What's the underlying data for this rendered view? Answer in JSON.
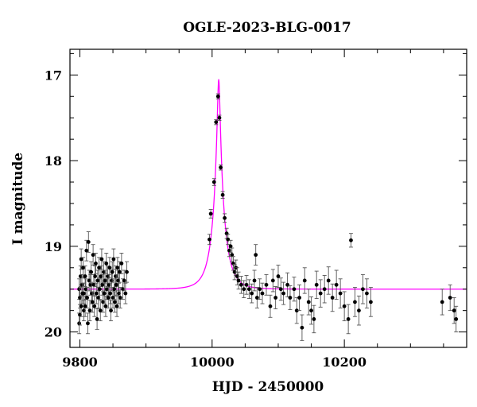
{
  "chart_data": {
    "type": "scatter",
    "title": "OGLE-2023-BLG-0017",
    "xlabel": "HJD - 2450000",
    "ylabel": "I magnitude",
    "xlim": [
      9785,
      10385
    ],
    "ylim": [
      20.18,
      16.7
    ],
    "y_inverted": true,
    "x_ticks": [
      9800,
      10000,
      10200
    ],
    "x_tick_labels": [
      "9800",
      "10000",
      "10200"
    ],
    "y_ticks": [
      17,
      18,
      19,
      20
    ],
    "y_tick_labels": [
      "17",
      "18",
      "19",
      "20"
    ],
    "grid": false,
    "colors": {
      "data": "#000000",
      "errorbar": "#555555",
      "model": "#ff00ff",
      "frame": "#000000"
    },
    "model": {
      "curve": "microlensing point-lens fit",
      "t0": 10010,
      "peak_mag": 17.05,
      "baseline_mag": 19.5
    },
    "series": [
      {
        "points": [
          [
            9799,
            19.9,
            0.12
          ],
          [
            9799,
            19.5,
            0.12
          ],
          [
            9800,
            19.6,
            0.12
          ],
          [
            9800,
            19.8,
            0.12
          ],
          [
            9801,
            19.35,
            0.12
          ],
          [
            9802,
            19.15,
            0.12
          ],
          [
            9802,
            19.7,
            0.12
          ],
          [
            9803,
            19.45,
            0.12
          ],
          [
            9804,
            19.55,
            0.12
          ],
          [
            9805,
            19.25,
            0.12
          ],
          [
            9806,
            19.75,
            0.12
          ],
          [
            9806,
            19.55,
            0.12
          ],
          [
            9808,
            19.35,
            0.12
          ],
          [
            9808,
            19.7,
            0.12
          ],
          [
            9809,
            19.5,
            0.12
          ],
          [
            9810,
            19.05,
            0.12
          ],
          [
            9811,
            19.6,
            0.12
          ],
          [
            9812,
            19.9,
            0.12
          ],
          [
            9813,
            18.95,
            0.12
          ],
          [
            9814,
            19.4,
            0.12
          ],
          [
            9815,
            19.75,
            0.12
          ],
          [
            9816,
            19.45,
            0.12
          ],
          [
            9817,
            19.3,
            0.12
          ],
          [
            9818,
            19.55,
            0.12
          ],
          [
            9819,
            19.65,
            0.12
          ],
          [
            9820,
            19.1,
            0.12
          ],
          [
            9821,
            19.45,
            0.12
          ],
          [
            9822,
            19.7,
            0.12
          ],
          [
            9823,
            19.35,
            0.12
          ],
          [
            9824,
            19.2,
            0.12
          ],
          [
            9825,
            19.55,
            0.12
          ],
          [
            9826,
            19.85,
            0.12
          ],
          [
            9827,
            19.4,
            0.12
          ],
          [
            9828,
            19.6,
            0.12
          ],
          [
            9829,
            19.25,
            0.12
          ],
          [
            9830,
            19.5,
            0.12
          ],
          [
            9831,
            19.75,
            0.12
          ],
          [
            9832,
            19.35,
            0.12
          ],
          [
            9833,
            19.15,
            0.12
          ],
          [
            9834,
            19.45,
            0.12
          ],
          [
            9835,
            19.65,
            0.12
          ],
          [
            9836,
            19.3,
            0.12
          ],
          [
            9837,
            19.55,
            0.12
          ],
          [
            9838,
            19.4,
            0.12
          ],
          [
            9839,
            19.7,
            0.12
          ],
          [
            9840,
            19.2,
            0.12
          ],
          [
            9841,
            19.5,
            0.12
          ],
          [
            9842,
            19.35,
            0.12
          ],
          [
            9843,
            19.6,
            0.12
          ],
          [
            9844,
            19.45,
            0.12
          ],
          [
            9845,
            19.25,
            0.12
          ],
          [
            9846,
            19.55,
            0.12
          ],
          [
            9847,
            19.75,
            0.12
          ],
          [
            9848,
            19.4,
            0.12
          ],
          [
            9849,
            19.3,
            0.12
          ],
          [
            9850,
            19.6,
            0.12
          ],
          [
            9851,
            19.15,
            0.12
          ],
          [
            9852,
            19.5,
            0.12
          ],
          [
            9853,
            19.65,
            0.12
          ],
          [
            9854,
            19.35,
            0.12
          ],
          [
            9855,
            19.45,
            0.12
          ],
          [
            9856,
            19.7,
            0.12
          ],
          [
            9857,
            19.25,
            0.12
          ],
          [
            9858,
            19.4,
            0.12
          ],
          [
            9859,
            19.55,
            0.12
          ],
          [
            9860,
            19.3,
            0.12
          ],
          [
            9861,
            19.6,
            0.12
          ],
          [
            9863,
            19.2,
            0.12
          ],
          [
            9865,
            19.5,
            0.12
          ],
          [
            9867,
            19.4,
            0.12
          ],
          [
            9869,
            19.55,
            0.12
          ],
          [
            9871,
            19.3,
            0.12
          ],
          [
            9996,
            18.92,
            0.06
          ],
          [
            9998,
            18.62,
            0.05
          ],
          [
            10003,
            18.25,
            0.04
          ],
          [
            10006,
            17.55,
            0.03
          ],
          [
            10009,
            17.25,
            0.03
          ],
          [
            10011,
            17.5,
            0.03
          ],
          [
            10013,
            18.08,
            0.03
          ],
          [
            10016,
            18.4,
            0.04
          ],
          [
            10019,
            18.67,
            0.05
          ],
          [
            10022,
            18.85,
            0.06
          ],
          [
            10024,
            18.92,
            0.06
          ],
          [
            10026,
            19.05,
            0.07
          ],
          [
            10028,
            19.0,
            0.07
          ],
          [
            10030,
            19.1,
            0.08
          ],
          [
            10032,
            19.2,
            0.08
          ],
          [
            10034,
            19.3,
            0.09
          ],
          [
            10036,
            19.25,
            0.09
          ],
          [
            10038,
            19.35,
            0.1
          ],
          [
            10040,
            19.4,
            0.1
          ],
          [
            10044,
            19.45,
            0.1
          ],
          [
            10048,
            19.5,
            0.1
          ],
          [
            10052,
            19.45,
            0.11
          ],
          [
            10056,
            19.5,
            0.11
          ],
          [
            10060,
            19.55,
            0.11
          ],
          [
            10064,
            19.4,
            0.12
          ],
          [
            10066,
            19.1,
            0.12
          ],
          [
            10068,
            19.6,
            0.12
          ],
          [
            10072,
            19.5,
            0.12
          ],
          [
            10076,
            19.55,
            0.12
          ],
          [
            10082,
            19.45,
            0.12
          ],
          [
            10088,
            19.7,
            0.13
          ],
          [
            10092,
            19.4,
            0.13
          ],
          [
            10096,
            19.6,
            0.13
          ],
          [
            10100,
            19.35,
            0.13
          ],
          [
            10104,
            19.5,
            0.13
          ],
          [
            10108,
            19.55,
            0.13
          ],
          [
            10114,
            19.45,
            0.14
          ],
          [
            10118,
            19.6,
            0.14
          ],
          [
            10124,
            19.5,
            0.14
          ],
          [
            10128,
            19.75,
            0.15
          ],
          [
            10132,
            19.6,
            0.15
          ],
          [
            10136,
            19.95,
            0.15
          ],
          [
            10140,
            19.4,
            0.15
          ],
          [
            10146,
            19.65,
            0.15
          ],
          [
            10150,
            19.75,
            0.16
          ],
          [
            10154,
            19.85,
            0.16
          ],
          [
            10158,
            19.45,
            0.16
          ],
          [
            10164,
            19.55,
            0.16
          ],
          [
            10170,
            19.5,
            0.16
          ],
          [
            10176,
            19.4,
            0.16
          ],
          [
            10182,
            19.6,
            0.16
          ],
          [
            10188,
            19.45,
            0.17
          ],
          [
            10194,
            19.55,
            0.17
          ],
          [
            10200,
            19.7,
            0.17
          ],
          [
            10206,
            19.85,
            0.17
          ],
          [
            10210,
            18.93,
            0.08
          ],
          [
            10216,
            19.65,
            0.17
          ],
          [
            10222,
            19.75,
            0.17
          ],
          [
            10228,
            19.5,
            0.17
          ],
          [
            10234,
            19.55,
            0.17
          ],
          [
            10240,
            19.65,
            0.17
          ],
          [
            10348,
            19.65,
            0.15
          ],
          [
            10360,
            19.6,
            0.15
          ],
          [
            10366,
            19.75,
            0.15
          ],
          [
            10369,
            19.85,
            0.15
          ]
        ]
      }
    ]
  }
}
